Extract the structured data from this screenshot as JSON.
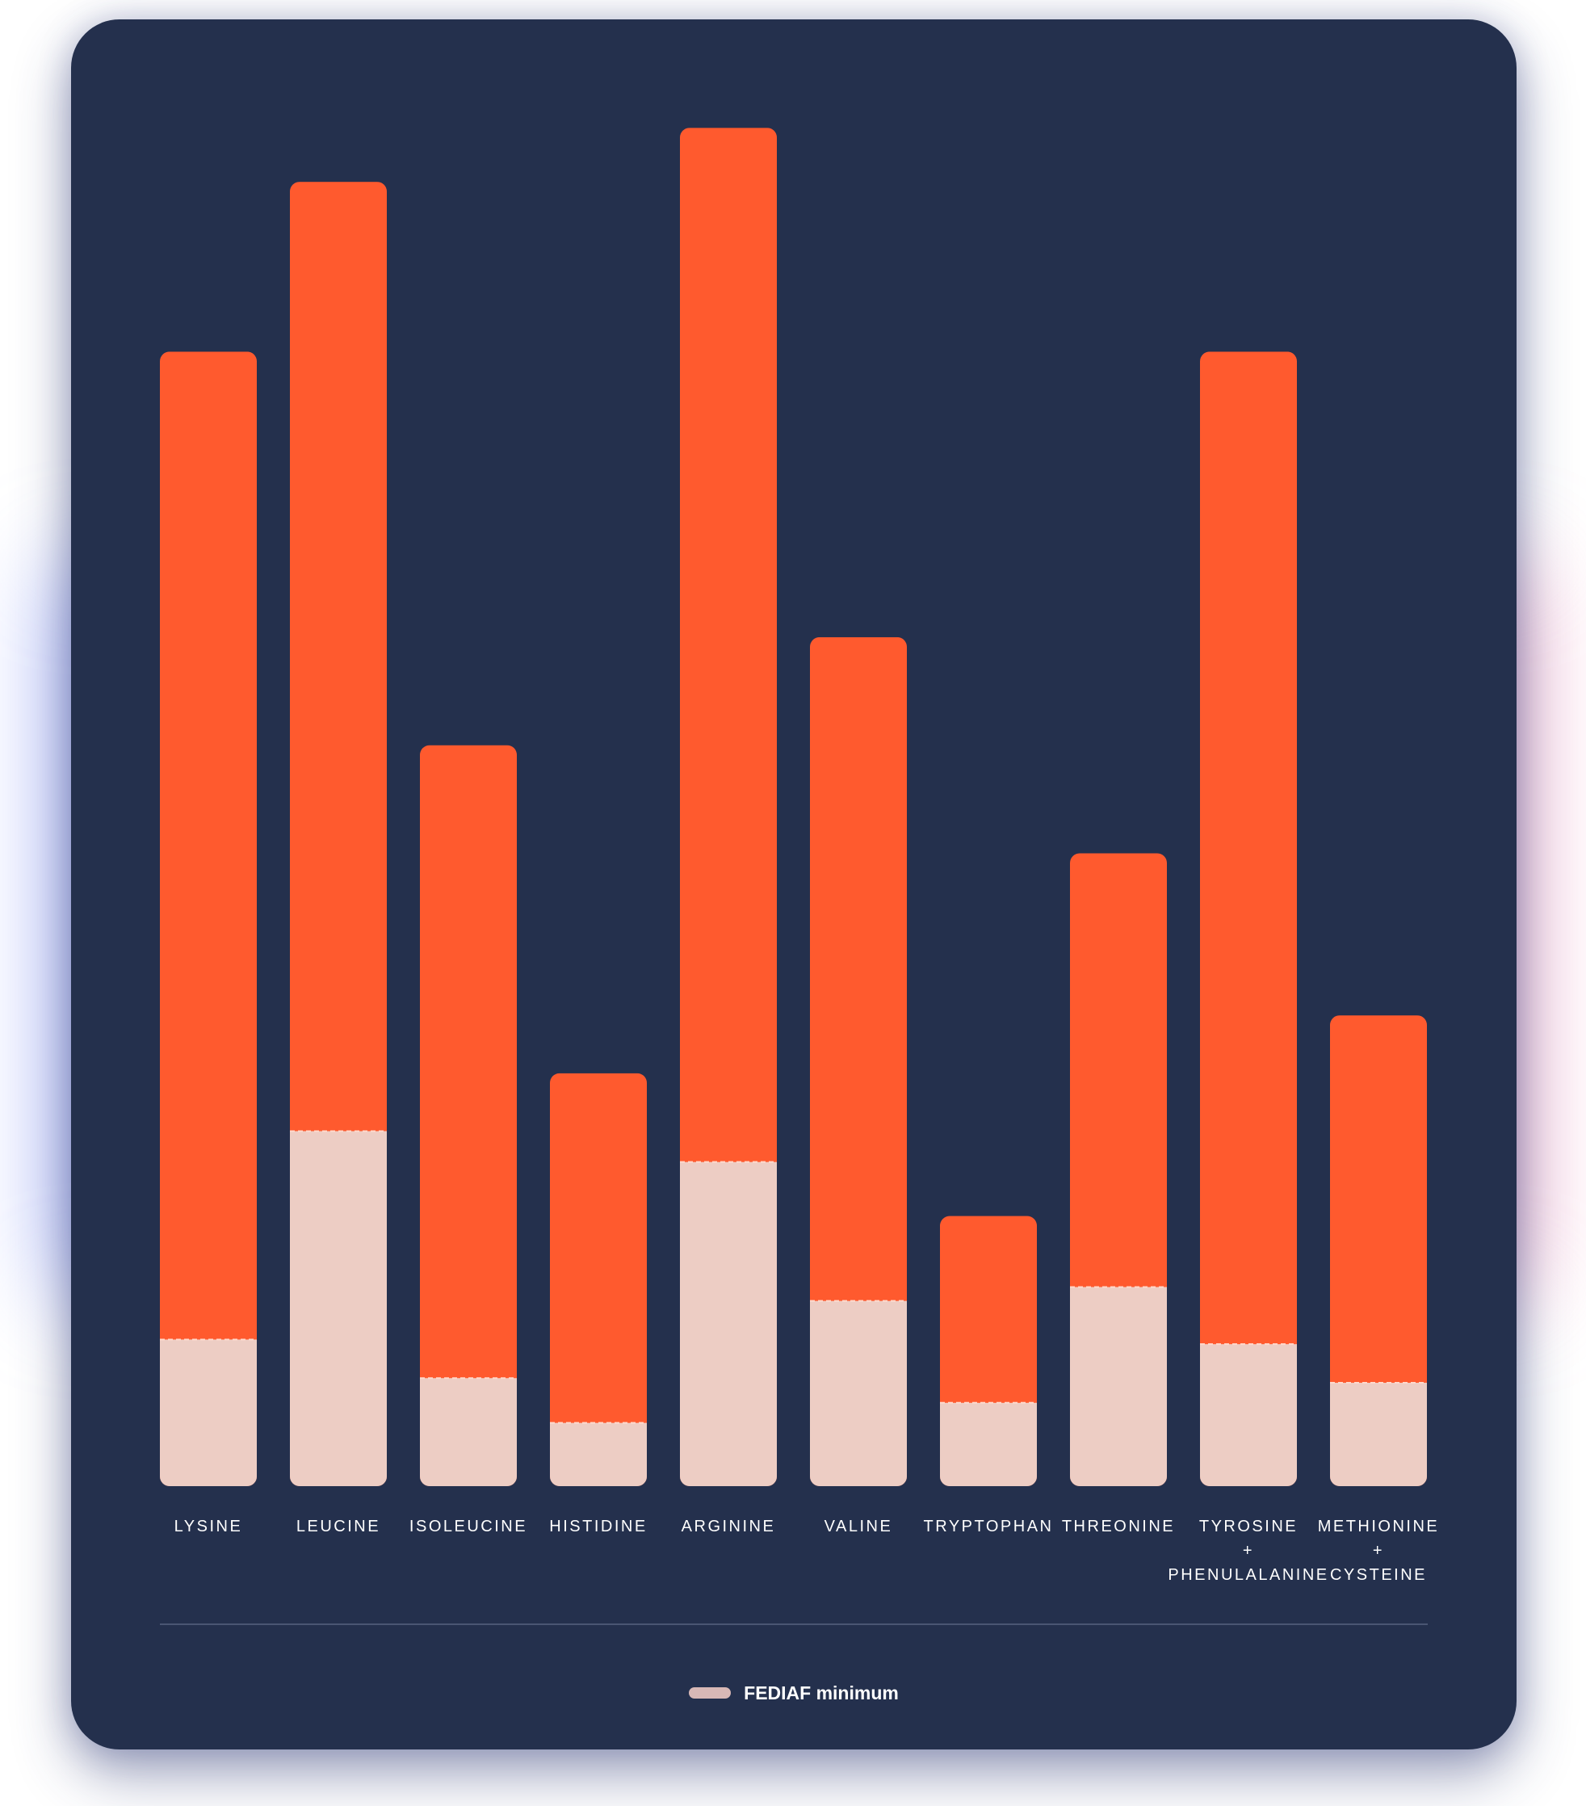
{
  "chart_data": {
    "type": "bar",
    "categories": [
      [
        "LYSINE"
      ],
      [
        "LEUCINE"
      ],
      [
        "ISOLEUCINE"
      ],
      [
        "HISTIDINE"
      ],
      [
        "ARGININE"
      ],
      [
        "VALINE"
      ],
      [
        "TRYPTOPHAN"
      ],
      [
        "THREONINE"
      ],
      [
        "TYROSINE",
        "+",
        "PHENULALANINE"
      ],
      [
        "METHIONINE",
        "+",
        "CYSTEINE"
      ]
    ],
    "series": [
      {
        "values": [
          1470,
          1690,
          960,
          535,
          1760,
          1100,
          350,
          820,
          1470,
          610
        ]
      },
      {
        "name": "FEDIAF minimum",
        "values": [
          190,
          460,
          140,
          82,
          420,
          240,
          108,
          258,
          184,
          134
        ]
      }
    ],
    "ylim": [
      0,
      1800
    ],
    "colors": {
      "bar": "#ff5a2e",
      "minimum": "#edcdc4",
      "background": "#24304d",
      "label": "#ffffff"
    },
    "legend": {
      "label": "FEDIAF minimum",
      "swatch_color": "#d8b8b6",
      "position": "bottom-center"
    },
    "grid": false
  }
}
